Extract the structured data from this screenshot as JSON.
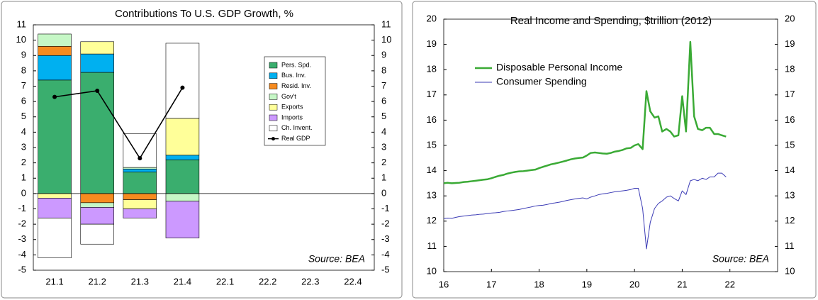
{
  "chart_data": [
    {
      "type": "bar",
      "title": "Contributions To U.S. GDP Growth, %",
      "categories": [
        "21.1",
        "21.2",
        "21.3",
        "21.4",
        "22.1",
        "22.2",
        "22.3",
        "22.4"
      ],
      "stacked": true,
      "series": [
        {
          "name": "Pers. Spd.",
          "color": "#3aae6e",
          "values": [
            7.4,
            7.9,
            1.4,
            2.2,
            null,
            null,
            null,
            null
          ]
        },
        {
          "name": "Bus. Inv.",
          "color": "#00b0f0",
          "values": [
            1.6,
            1.2,
            0.2,
            0.3,
            null,
            null,
            null,
            null
          ]
        },
        {
          "name": "Resid. Inv.",
          "color": "#f68b1f",
          "values": [
            0.6,
            -0.6,
            -0.4,
            0,
            null,
            null,
            null,
            null
          ]
        },
        {
          "name": "Gov't",
          "color": "#c6f7c6",
          "values": [
            0.8,
            -0.3,
            0.1,
            -0.5,
            null,
            null,
            null,
            null
          ]
        },
        {
          "name": "Exports",
          "color": "#ffff99",
          "values": [
            -0.3,
            0.8,
            -0.6,
            2.4,
            null,
            null,
            null,
            null
          ]
        },
        {
          "name": "Imports",
          "color": "#cc99ff",
          "values": [
            -1.3,
            -1.1,
            -0.6,
            -2.4,
            null,
            null,
            null,
            null
          ]
        },
        {
          "name": "Ch. Invent.",
          "color": "#ffffff",
          "values": [
            -2.6,
            -1.3,
            2.2,
            4.9,
            null,
            null,
            null,
            null
          ]
        },
        {
          "name": "Real GDP",
          "type": "line",
          "color": "#000000",
          "values": [
            6.3,
            6.7,
            2.3,
            6.9,
            null,
            null,
            null,
            null
          ]
        }
      ],
      "ylim": [
        -5,
        11
      ],
      "yticks": [
        -5,
        -4,
        -3,
        -2,
        -1,
        0,
        1,
        2,
        3,
        4,
        5,
        6,
        7,
        8,
        9,
        10,
        11
      ],
      "y2lim": [
        -5,
        11
      ],
      "y2ticks": [
        -5,
        -4,
        -3,
        -2,
        -1,
        0,
        1,
        2,
        3,
        4,
        5,
        6,
        7,
        8,
        9,
        10,
        11
      ],
      "annotation": "Source: BEA",
      "legend": "right"
    },
    {
      "type": "line",
      "title": "Real Income and Spending, $trillion (2012)",
      "x": [
        16.0,
        16.08,
        16.17,
        16.25,
        16.33,
        16.42,
        16.5,
        16.58,
        16.67,
        16.75,
        16.83,
        16.92,
        17.0,
        17.08,
        17.17,
        17.25,
        17.33,
        17.42,
        17.5,
        17.58,
        17.67,
        17.75,
        17.83,
        17.92,
        18.0,
        18.08,
        18.17,
        18.25,
        18.33,
        18.42,
        18.5,
        18.58,
        18.67,
        18.75,
        18.83,
        18.92,
        19.0,
        19.08,
        19.17,
        19.25,
        19.33,
        19.42,
        19.5,
        19.58,
        19.67,
        19.75,
        19.83,
        19.92,
        20.0,
        20.08,
        20.17,
        20.25,
        20.33,
        20.42,
        20.5,
        20.58,
        20.67,
        20.75,
        20.83,
        20.92,
        21.0,
        21.08,
        21.17,
        21.25,
        21.33,
        21.42,
        21.5,
        21.58,
        21.67,
        21.75,
        21.83,
        21.92
      ],
      "series": [
        {
          "name": "Disposable Personal Income",
          "color": "#3aaa35",
          "width": 2.5,
          "values": [
            13.5,
            13.52,
            13.5,
            13.51,
            13.52,
            13.55,
            13.56,
            13.58,
            13.6,
            13.62,
            13.64,
            13.66,
            13.7,
            13.75,
            13.8,
            13.83,
            13.88,
            13.92,
            13.95,
            13.97,
            13.98,
            14.0,
            14.02,
            14.04,
            14.1,
            14.15,
            14.2,
            14.25,
            14.28,
            14.32,
            14.36,
            14.4,
            14.45,
            14.48,
            14.5,
            14.52,
            14.6,
            14.7,
            14.72,
            14.7,
            14.68,
            14.67,
            14.7,
            14.75,
            14.78,
            14.82,
            14.88,
            14.9,
            15.0,
            15.05,
            14.85,
            17.15,
            16.35,
            16.1,
            16.15,
            15.55,
            15.65,
            15.55,
            15.35,
            15.4,
            16.95,
            15.55,
            19.1,
            16.15,
            15.65,
            15.6,
            15.7,
            15.7,
            15.45,
            15.45,
            15.4,
            15.35
          ]
        },
        {
          "name": "Consumer Spending",
          "color": "#3b3bb5",
          "width": 1,
          "values": [
            12.1,
            12.12,
            12.11,
            12.15,
            12.18,
            12.2,
            12.22,
            12.24,
            12.25,
            12.27,
            12.28,
            12.3,
            12.32,
            12.33,
            12.35,
            12.38,
            12.4,
            12.42,
            12.44,
            12.46,
            12.5,
            12.53,
            12.56,
            12.6,
            12.62,
            12.63,
            12.66,
            12.7,
            12.72,
            12.75,
            12.78,
            12.82,
            12.85,
            12.88,
            12.9,
            12.92,
            12.88,
            12.95,
            13.0,
            13.05,
            13.08,
            13.1,
            13.13,
            13.16,
            13.18,
            13.2,
            13.22,
            13.25,
            13.3,
            13.3,
            12.5,
            10.9,
            11.95,
            12.5,
            12.7,
            12.8,
            12.95,
            13.0,
            12.9,
            12.8,
            13.2,
            13.05,
            13.6,
            13.65,
            13.6,
            13.7,
            13.65,
            13.75,
            13.75,
            13.9,
            13.9,
            13.75
          ]
        }
      ],
      "xlim": [
        16,
        23
      ],
      "xticks": [
        16,
        17,
        18,
        19,
        20,
        21,
        22
      ],
      "ylim": [
        10,
        20
      ],
      "yticks": [
        10,
        11,
        12,
        13,
        14,
        15,
        16,
        17,
        18,
        19,
        20
      ],
      "y2lim": [
        10,
        20
      ],
      "y2ticks": [
        10,
        11,
        12,
        13,
        14,
        15,
        16,
        17,
        18,
        19,
        20
      ],
      "annotation": "Source: BEA",
      "legend": "upper left"
    }
  ]
}
